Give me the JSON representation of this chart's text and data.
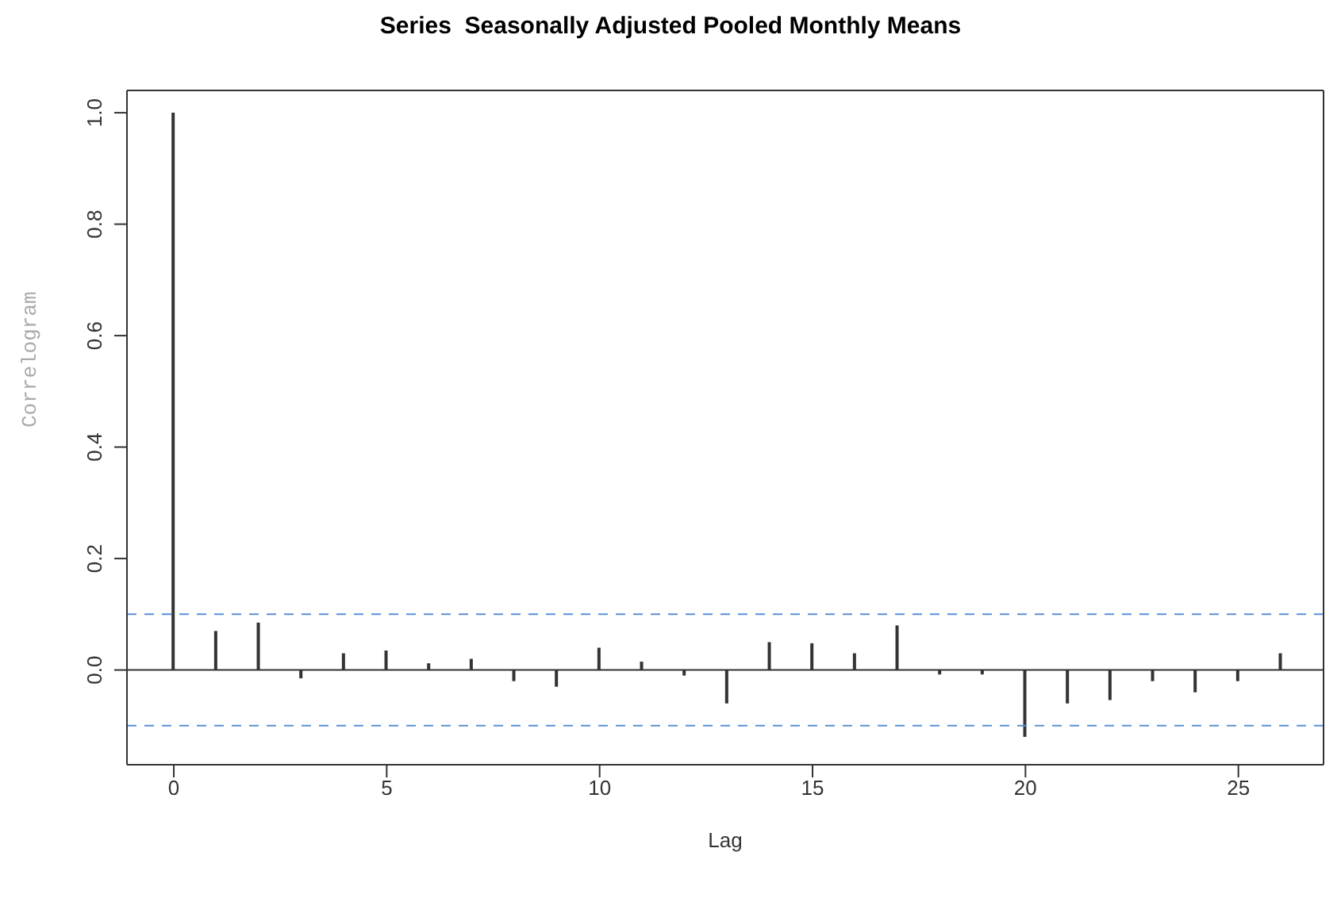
{
  "chart_data": {
    "type": "bar",
    "title": "Series  Seasonally Adjusted Pooled Monthly Means",
    "xlabel": "Lag",
    "ylabel": "Correlogram",
    "x": [
      0,
      1,
      2,
      3,
      4,
      5,
      6,
      7,
      8,
      9,
      10,
      11,
      12,
      13,
      14,
      15,
      16,
      17,
      18,
      19,
      20,
      21,
      22,
      23,
      24,
      25,
      26
    ],
    "values": [
      1.0,
      0.07,
      0.085,
      -0.015,
      0.03,
      0.035,
      0.012,
      0.02,
      -0.02,
      -0.03,
      0.04,
      0.015,
      -0.01,
      -0.06,
      0.05,
      0.048,
      0.03,
      0.08,
      -0.008,
      -0.008,
      -0.12,
      -0.06,
      -0.054,
      -0.02,
      -0.04,
      -0.02,
      0.03
    ],
    "color": "#333333",
    "xlim": [
      -1.1,
      27
    ],
    "xticks": [
      0,
      5,
      10,
      15,
      20,
      25
    ],
    "ylim": [
      -0.17,
      1.04
    ],
    "yticks": [
      {
        "value": 0,
        "label": "0.0"
      },
      0.2,
      0.4,
      0.6,
      0.8,
      {
        "value": 1,
        "label": "1.0"
      }
    ],
    "grid": false,
    "legend": false,
    "ref_lines": [
      {
        "axis": "y",
        "value": 0,
        "color": "#333333",
        "line_style": "solid"
      },
      {
        "axis": "y",
        "value": 0.1,
        "color": "#5b8fd6",
        "line_style": "dashed"
      },
      {
        "axis": "y",
        "value": -0.1,
        "color": "#5b8fd6",
        "line_style": "dashed"
      }
    ]
  }
}
